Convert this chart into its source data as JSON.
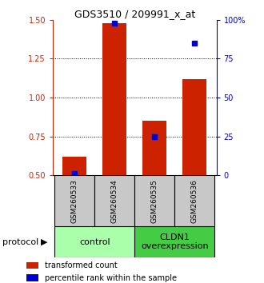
{
  "title": "GDS3510 / 209991_x_at",
  "samples": [
    "GSM260533",
    "GSM260534",
    "GSM260535",
    "GSM260536"
  ],
  "red_values": [
    0.62,
    1.48,
    0.85,
    1.12
  ],
  "blue_values": [
    0.515,
    1.48,
    0.75,
    1.35
  ],
  "baseline": 0.5,
  "ylim_left": [
    0.5,
    1.5
  ],
  "ylim_right": [
    0,
    100
  ],
  "yticks_left": [
    0.5,
    0.75,
    1.0,
    1.25,
    1.5
  ],
  "yticks_right": [
    0,
    25,
    50,
    75,
    100
  ],
  "ytick_right_labels": [
    "0",
    "25",
    "50",
    "75",
    "100%"
  ],
  "gridlines": [
    0.75,
    1.0,
    1.25
  ],
  "red_color": "#CC2200",
  "blue_color": "#0000CC",
  "bar_width": 0.6,
  "control_label": "control",
  "overexp_label": "CLDN1\noverexpression",
  "protocol_label": "protocol",
  "legend_red": "transformed count",
  "legend_blue": "percentile rank within the sample",
  "sample_box_color": "#C8C8C8",
  "control_bg": "#AAFFAA",
  "overexp_bg": "#44CC44"
}
